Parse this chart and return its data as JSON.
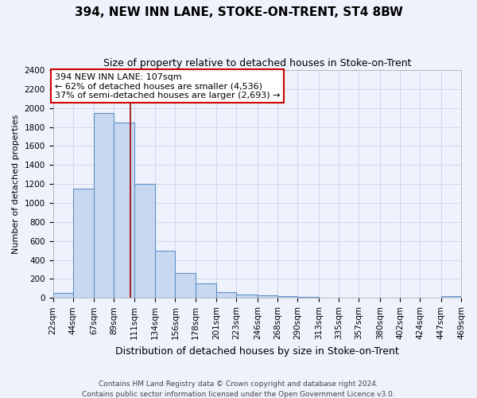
{
  "title1": "394, NEW INN LANE, STOKE-ON-TRENT, ST4 8BW",
  "title2": "Size of property relative to detached houses in Stoke-on-Trent",
  "xlabel": "Distribution of detached houses by size in Stoke-on-Trent",
  "ylabel": "Number of detached properties",
  "footer1": "Contains HM Land Registry data © Crown copyright and database right 2024.",
  "footer2": "Contains public sector information licensed under the Open Government Licence v3.0.",
  "annotation_line1": "394 NEW INN LANE: 107sqm",
  "annotation_line2": "← 62% of detached houses are smaller (4,536)",
  "annotation_line3": "37% of semi-detached houses are larger (2,693) →",
  "bar_edges": [
    22,
    44,
    67,
    89,
    111,
    134,
    156,
    178,
    201,
    223,
    246,
    268,
    290,
    313,
    335,
    357,
    380,
    402,
    424,
    447,
    469
  ],
  "bar_heights": [
    50,
    1150,
    1950,
    1850,
    1200,
    500,
    260,
    150,
    60,
    35,
    30,
    20,
    8,
    5,
    5,
    5,
    3,
    5,
    2,
    20
  ],
  "bar_color": "#c8d8f0",
  "bar_edge_color": "#6090c8",
  "vline_color": "#990000",
  "vline_x": 107,
  "ylim": [
    0,
    2400
  ],
  "yticks": [
    0,
    200,
    400,
    600,
    800,
    1000,
    1200,
    1400,
    1600,
    1800,
    2000,
    2200,
    2400
  ],
  "background_color": "#eef2fc",
  "plot_bg_color": "#eef2fc",
  "grid_color": "#c8cce0",
  "annotation_box_color": "#ffffff",
  "annotation_box_edge": "#cc0000",
  "title1_fontsize": 11,
  "title2_fontsize": 9,
  "ylabel_fontsize": 8,
  "xlabel_fontsize": 9,
  "tick_fontsize": 7.5,
  "footer_fontsize": 6.5
}
